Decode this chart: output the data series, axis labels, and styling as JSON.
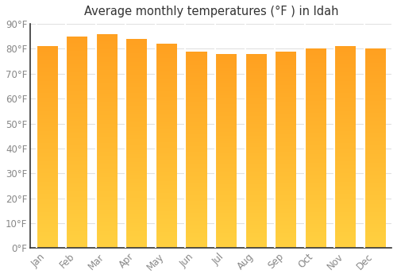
{
  "months": [
    "Jan",
    "Feb",
    "Mar",
    "Apr",
    "May",
    "Jun",
    "Jul",
    "Aug",
    "Sep",
    "Oct",
    "Nov",
    "Dec"
  ],
  "values": [
    81,
    85,
    86,
    84,
    82,
    79,
    78,
    78,
    79,
    80,
    81,
    80
  ],
  "bar_color_top": "#FFA020",
  "bar_color_bottom": "#FFD040",
  "bar_edge_color": "#FFFFFF",
  "title": "Average monthly temperatures (°F ) in Idah",
  "ylim": [
    0,
    90
  ],
  "ytick_step": 10,
  "background_color": "#FFFFFF",
  "plot_bg_color": "#FFFFFF",
  "grid_color": "#E0E0E0",
  "title_fontsize": 10.5,
  "tick_fontsize": 8.5,
  "tick_color": "#888888",
  "spine_color": "#333333"
}
